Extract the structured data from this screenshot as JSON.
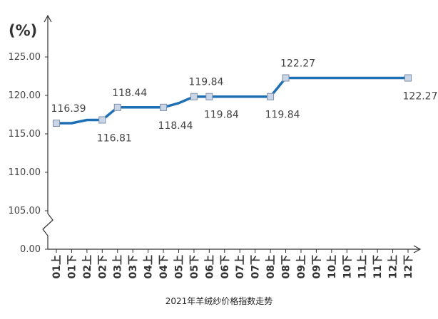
{
  "chart_data": {
    "type": "line",
    "title": "2021年羊绒纱价格指数走势",
    "unit": "(%)",
    "categories": [
      "01上",
      "01下",
      "02上",
      "02下",
      "03上",
      "03下",
      "04上",
      "04下",
      "05上",
      "05下",
      "06上",
      "06下",
      "07上",
      "07下",
      "08上",
      "08下",
      "09上",
      "09下",
      "10上",
      "10下",
      "11上",
      "11下",
      "12上",
      "12下"
    ],
    "series": [
      {
        "name": "",
        "color": "#1f6fb5",
        "points": [
          {
            "cat": "01上",
            "value": 116.39
          },
          {
            "cat": "01下",
            "value": 116.39
          },
          {
            "cat": "02上",
            "value": 116.81
          },
          {
            "cat": "02下",
            "value": 116.81
          },
          {
            "cat": "03上",
            "value": 118.44
          },
          {
            "cat": "03下",
            "value": 118.44
          },
          {
            "cat": "04上",
            "value": 118.44
          },
          {
            "cat": "04下",
            "value": 118.44
          },
          {
            "cat": "05上",
            "value": 119.0
          },
          {
            "cat": "05下",
            "value": 119.84
          },
          {
            "cat": "06上",
            "value": 119.84
          },
          {
            "cat": "06下",
            "value": 119.84
          },
          {
            "cat": "07上",
            "value": 119.84
          },
          {
            "cat": "07下",
            "value": 119.84
          },
          {
            "cat": "08上",
            "value": 119.84
          },
          {
            "cat": "08下",
            "value": 122.27
          },
          {
            "cat": "09上",
            "value": 122.27
          },
          {
            "cat": "09下",
            "value": 122.27
          },
          {
            "cat": "10上",
            "value": 122.27
          },
          {
            "cat": "10下",
            "value": 122.27
          },
          {
            "cat": "11上",
            "value": 122.27
          },
          {
            "cat": "11下",
            "value": 122.27
          },
          {
            "cat": "12上",
            "value": 122.27
          },
          {
            "cat": "12下",
            "value": 122.27
          }
        ],
        "markers": [
          {
            "cat": "01上",
            "value": 116.39,
            "label": "116.39",
            "label_pos": "above"
          },
          {
            "cat": "02下",
            "value": 116.81,
            "label": "116.81",
            "label_pos": "below"
          },
          {
            "cat": "03上",
            "value": 118.44,
            "label": "118.44",
            "label_pos": "above"
          },
          {
            "cat": "04下",
            "value": 118.44,
            "label": "118.44",
            "label_pos": "below"
          },
          {
            "cat": "05下",
            "value": 119.84,
            "label": "119.84",
            "label_pos": "above"
          },
          {
            "cat": "06上",
            "value": 119.84,
            "label": "119.84",
            "label_pos": "below"
          },
          {
            "cat": "08上",
            "value": 119.84,
            "label": "119.84",
            "label_pos": "below"
          },
          {
            "cat": "08下",
            "value": 122.27,
            "label": "122.27",
            "label_pos": "above"
          },
          {
            "cat": "12下",
            "value": 122.27,
            "label": "122.27",
            "label_pos": "below"
          }
        ]
      }
    ],
    "y_ticks": [
      "0.00",
      "105.00",
      "110.00",
      "115.00",
      "120.00",
      "125.00"
    ],
    "y_break": {
      "from": 0,
      "to": 105
    },
    "ylim": [
      105,
      127
    ],
    "grid": false,
    "legend": "none"
  }
}
